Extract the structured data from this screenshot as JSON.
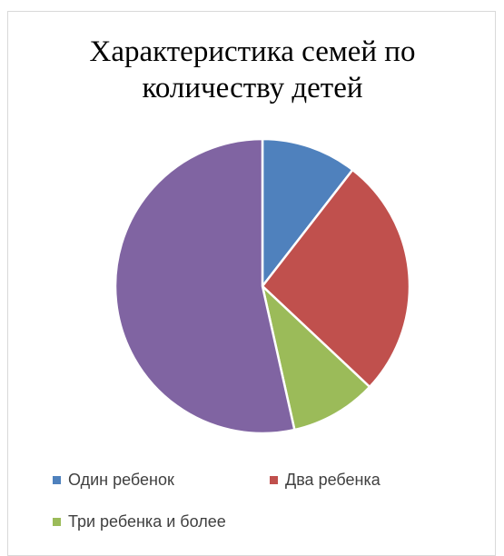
{
  "chart_data": {
    "type": "pie",
    "title": "Характеристика семей по количеству детей",
    "title_lines": [
      "Характеристика семей по",
      "количеству детей"
    ],
    "categories": [
      "Один ребенок",
      "Два ребенка",
      "Три ребенка и более",
      ""
    ],
    "values": [
      10.5,
      26.5,
      9.5,
      53.5
    ],
    "colors": [
      "#4F81BD",
      "#C0504D",
      "#9BBB59",
      "#8064A2"
    ],
    "legend": {
      "placement": "bottom",
      "entries": [
        "Один ребенок",
        "Два ребенка",
        "Три ребенка и более"
      ]
    }
  }
}
